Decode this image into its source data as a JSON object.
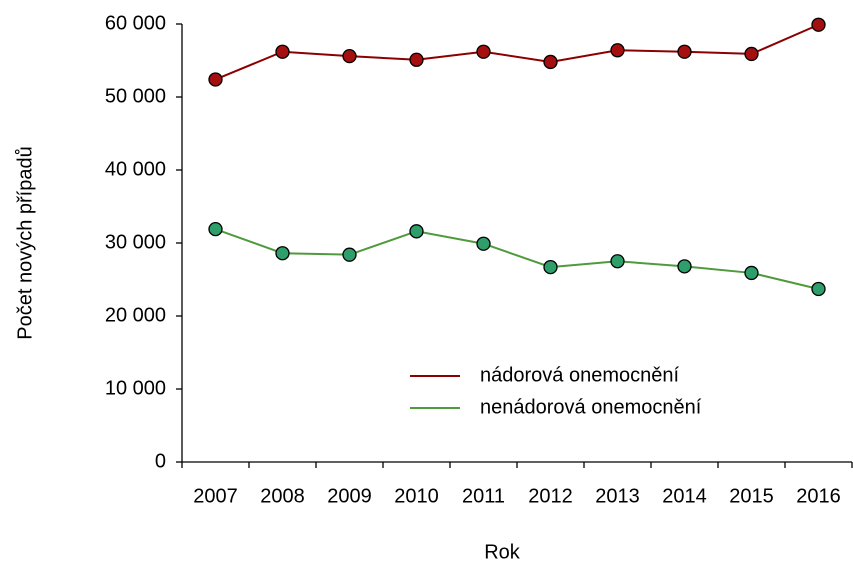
{
  "chart_data": {
    "type": "line",
    "x_label": "Rok",
    "y_label": "Počet nových případů",
    "categories": [
      "2007",
      "2008",
      "2009",
      "2010",
      "2011",
      "2012",
      "2013",
      "2014",
      "2015",
      "2016"
    ],
    "series": [
      {
        "name": "nádorová onemocnění",
        "color": "#8b0000",
        "marker_color": "#a50f0f",
        "values": [
          52400,
          56200,
          55600,
          55100,
          56200,
          54800,
          56400,
          56200,
          55900,
          59900
        ]
      },
      {
        "name": "nenádorová onemocnění",
        "color": "#4f9a3c",
        "marker_color": "#2e9e6a",
        "values": [
          31900,
          28600,
          28400,
          31600,
          29900,
          26700,
          27500,
          26800,
          25900,
          23700
        ]
      }
    ],
    "ylim": [
      0,
      60000
    ],
    "yticks": [
      0,
      {
        "value": 10000,
        "label": "10 000"
      },
      {
        "value": 20000,
        "label": "20 000"
      },
      {
        "value": 30000,
        "label": "30 000"
      },
      {
        "value": 40000,
        "label": "40 000"
      },
      {
        "value": 50000,
        "label": "50 000"
      },
      {
        "value": 60000,
        "label": "60 000"
      }
    ],
    "grid": false,
    "legend": "lower right"
  }
}
